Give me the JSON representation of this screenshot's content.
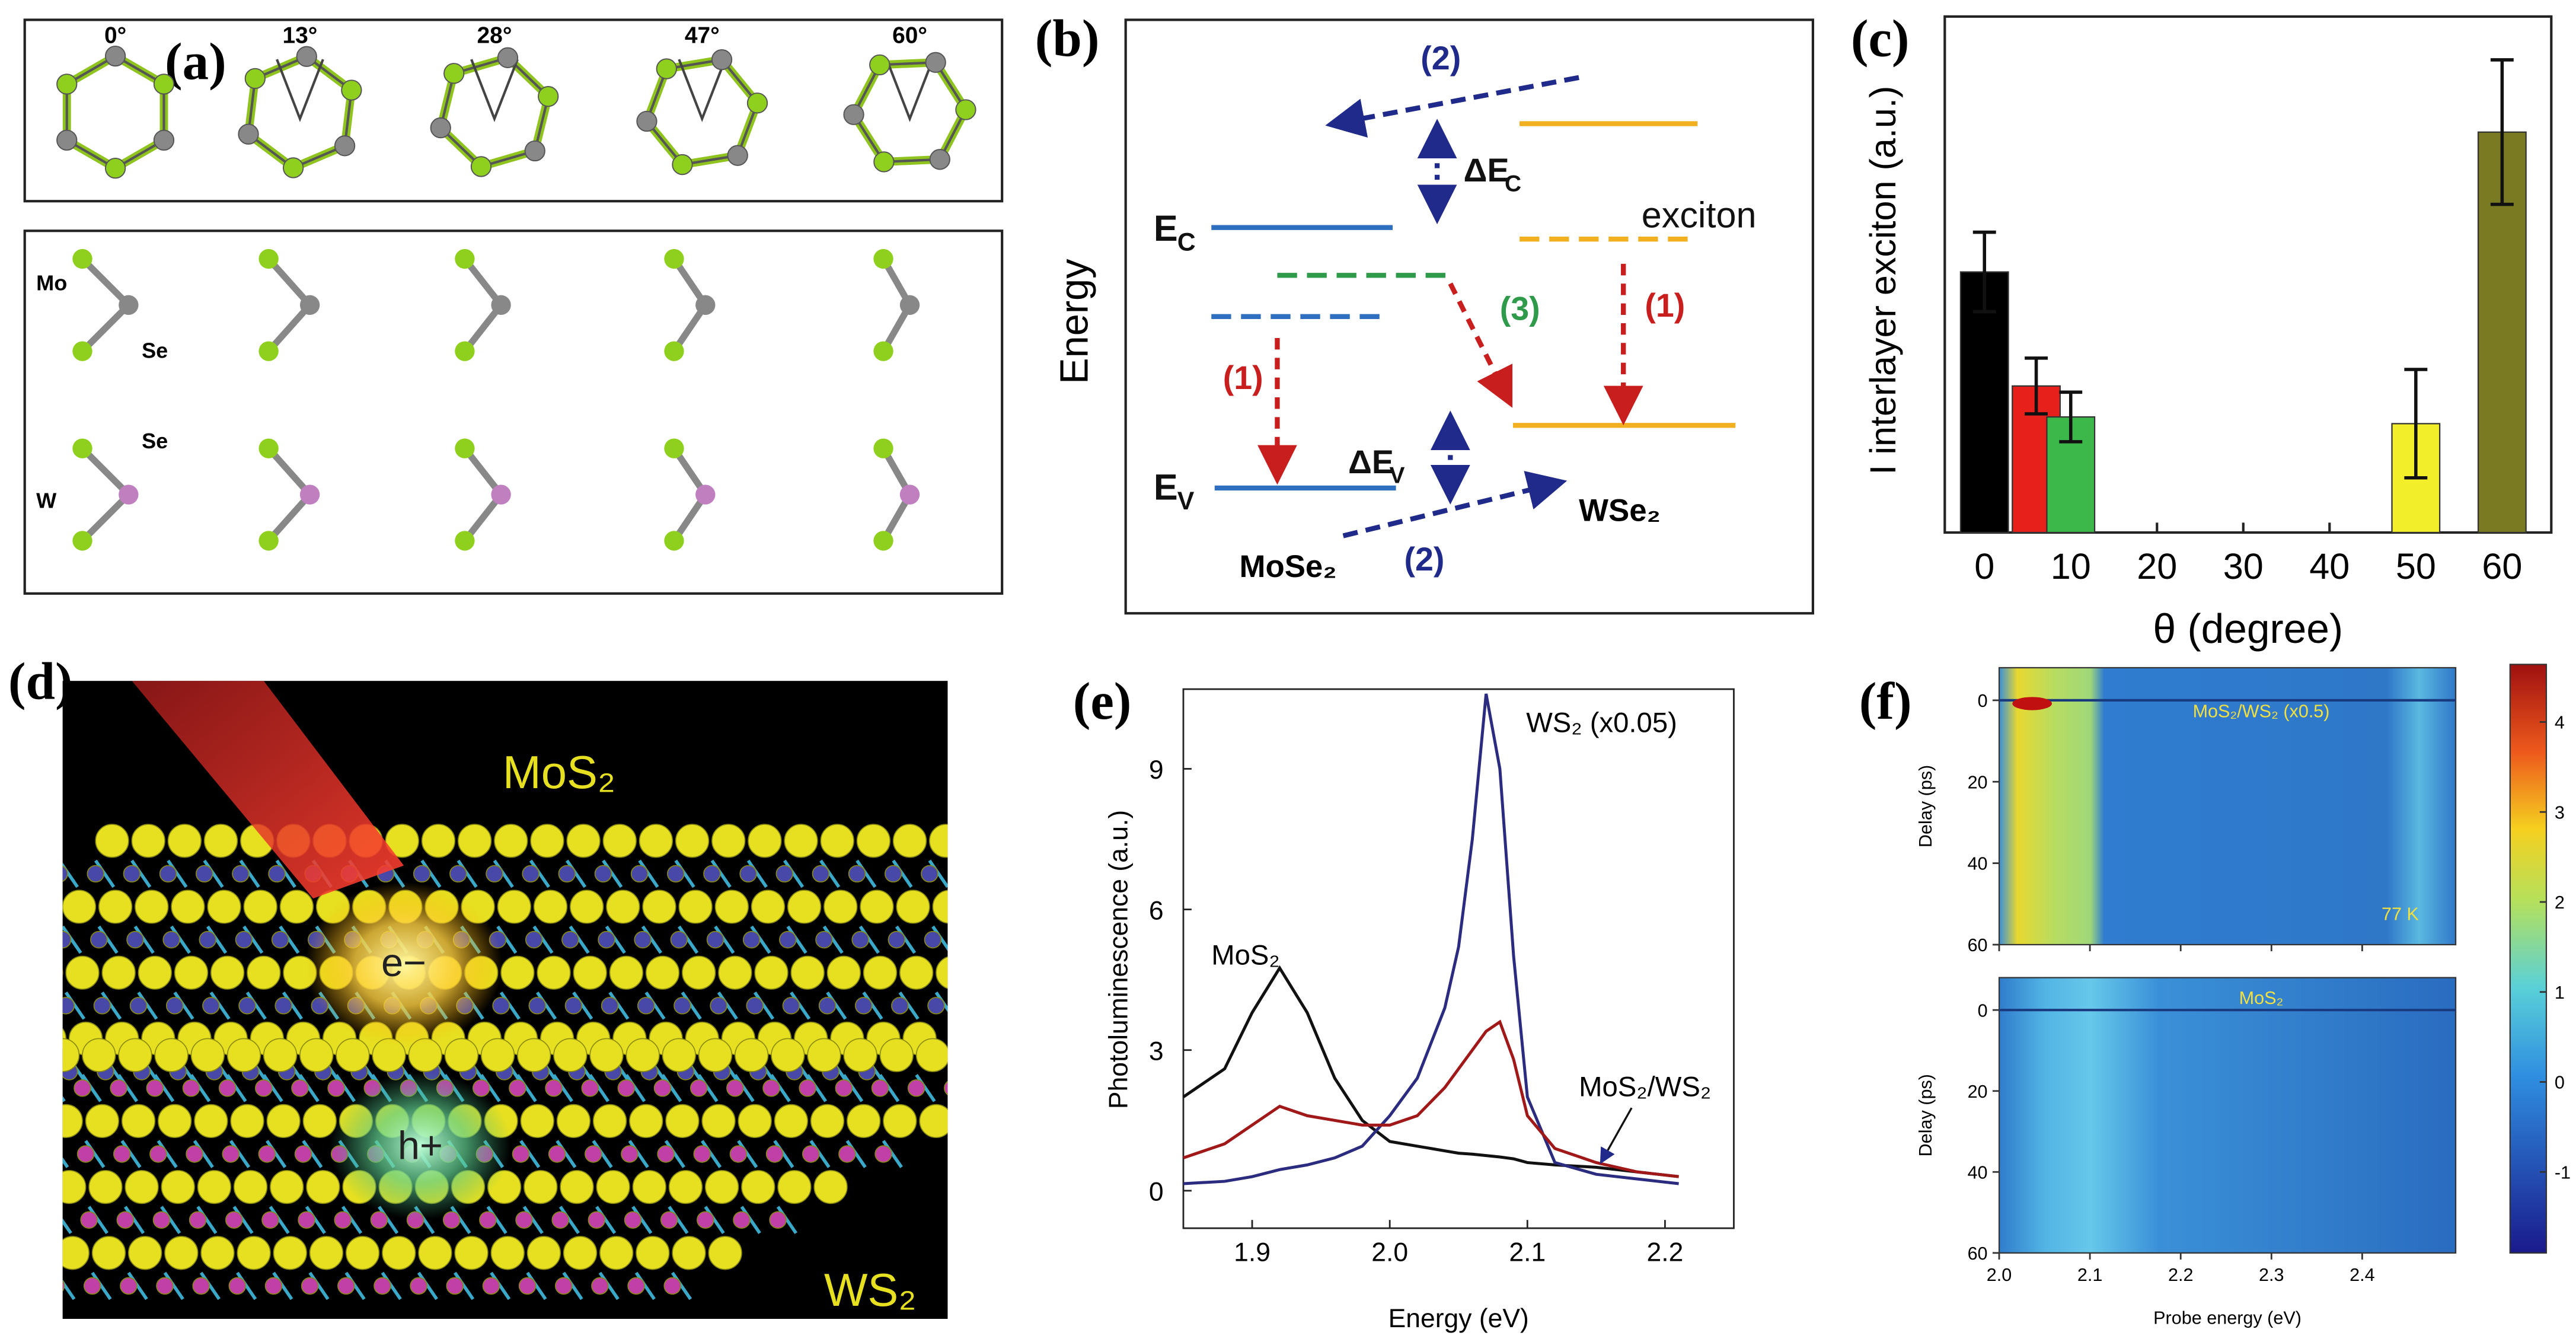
{
  "chart_data": [
    {
      "type": "bar",
      "panel": "(c)",
      "xlabel": "θ (degree)",
      "ylabel": "I interlayer exciton (a.u.)",
      "x": [
        0,
        6,
        10,
        50,
        60
      ],
      "values": [
        0.505,
        0.284,
        0.224,
        0.211,
        0.776
      ],
      "errors": [
        0.077,
        0.054,
        0.048,
        0.105,
        0.14
      ],
      "colors": [
        "#000000",
        "#e8201c",
        "#3cb84a",
        "#f2ee2a",
        "#7a7a22"
      ],
      "xlim": [
        -4.6,
        65.7
      ],
      "xticks": [
        0,
        10,
        20,
        30,
        40,
        50,
        60
      ],
      "ylim": [
        0,
        1
      ]
    },
    {
      "type": "line",
      "panel": "(e)",
      "xlabel": "Energy (eV)",
      "ylabel": "Photoluminescence (a.u.)",
      "x": [
        1.85,
        1.88,
        1.9,
        1.92,
        1.94,
        1.96,
        1.98,
        2.0,
        2.02,
        2.04,
        2.05,
        2.06,
        2.07,
        2.08,
        2.09,
        2.1,
        2.12,
        2.15,
        2.18,
        2.21
      ],
      "series": [
        {
          "name": "MoS₂",
          "color": "#111111",
          "values": [
            2.0,
            2.6,
            3.8,
            4.75,
            3.8,
            2.4,
            1.5,
            1.05,
            0.95,
            0.85,
            0.8,
            0.78,
            0.75,
            0.72,
            0.68,
            0.6,
            0.55,
            0.5,
            0.4,
            0.3
          ]
        },
        {
          "name": "WS₂ (x0.05)",
          "color": "#2b2b80",
          "values": [
            0.15,
            0.2,
            0.3,
            0.45,
            0.55,
            0.7,
            0.95,
            1.6,
            2.4,
            3.9,
            5.2,
            7.5,
            10.6,
            9.0,
            5.0,
            2.0,
            0.6,
            0.35,
            0.25,
            0.15
          ]
        },
        {
          "name": "MoS₂/WS₂",
          "color": "#a01818",
          "values": [
            0.7,
            1.0,
            1.4,
            1.8,
            1.6,
            1.5,
            1.4,
            1.4,
            1.6,
            2.2,
            2.6,
            3.0,
            3.4,
            3.6,
            2.8,
            1.6,
            0.9,
            0.6,
            0.4,
            0.3
          ]
        }
      ],
      "xlim": [
        1.85,
        2.25
      ],
      "xticks": [
        1.9,
        {
          "value": 2.0,
          "label": "2.0"
        },
        2.1,
        2.2
      ],
      "ylim": [
        -0.8,
        10.7
      ],
      "yticks": [
        0,
        3,
        6,
        9
      ]
    },
    {
      "type": "heatmap",
      "panel": "(f)",
      "xlabel": "Probe energy (eV)",
      "ylabel": "Delay (ps)",
      "subplots": [
        "MoS₂/WS₂ (x0.5)",
        "MoS₂"
      ],
      "annotation": "77 K",
      "xlim": [
        2.0,
        2.503
      ],
      "xticks": [
        {
          "value": 2.0,
          "label": "2.0"
        },
        2.1,
        2.2,
        2.3,
        2.4
      ],
      "ylim": [
        -8,
        60
      ],
      "yticks": [
        0,
        20,
        40,
        60
      ],
      "colorbar_lim": [
        -1.9,
        4.64
      ],
      "colorbar_ticks": [
        -1,
        0,
        1,
        2,
        3,
        4
      ]
    }
  ],
  "panel_a": {
    "label": "(a)",
    "angles": [
      "0°",
      "13°",
      "28°",
      "47°",
      "60°"
    ],
    "atoms": [
      "Mo",
      "Se",
      "Se",
      "W"
    ]
  },
  "panel_b": {
    "label": "(b)",
    "axis": "Energy",
    "ec": {
      "main": "E",
      "sub": "C"
    },
    "ev": {
      "main": "E",
      "sub": "V"
    },
    "dec": {
      "main": "ΔE",
      "sub": "C"
    },
    "dev": {
      "main": "ΔE",
      "sub": "V"
    },
    "exciton": "exciton",
    "steps": [
      "(1)",
      "(2)",
      "(3)"
    ],
    "materials": [
      "MoSe₂",
      "WSe₂"
    ]
  },
  "panel_d": {
    "label": "(d)",
    "layers": [
      "MoS₂",
      "WS₂"
    ],
    "carriers": [
      "e−",
      "h+"
    ]
  }
}
